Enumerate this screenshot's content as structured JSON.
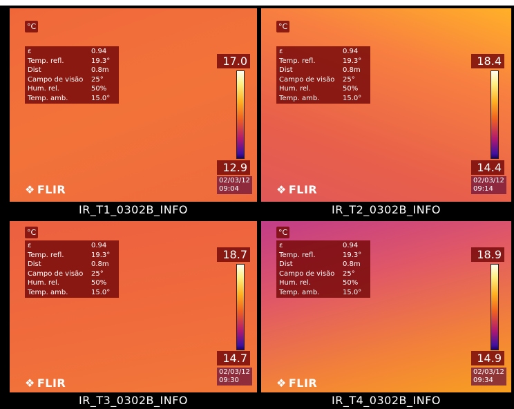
{
  "panels": [
    {
      "unit": "°C",
      "params": [
        {
          "label": "ε",
          "value": "0.94"
        },
        {
          "label": "Temp. refl.",
          "value": "19.3°"
        },
        {
          "label": "Dist",
          "value": "0.8m"
        },
        {
          "label": "Campo de visão",
          "value": "25°"
        },
        {
          "label": "Hum. rel.",
          "value": "50%"
        },
        {
          "label": "Temp. amb.",
          "value": "15.0°"
        }
      ],
      "scale_max": "17.0",
      "scale_min": "12.9",
      "date": "02/03/12",
      "time": "09:04",
      "logo": "FLIR",
      "caption": "IR_T1_0302B_INFO"
    },
    {
      "unit": "°C",
      "params": [
        {
          "label": "ε",
          "value": "0.94"
        },
        {
          "label": "Temp. refl.",
          "value": "19.3°"
        },
        {
          "label": "Dist",
          "value": "0.8m"
        },
        {
          "label": "Campo de visão",
          "value": "25°"
        },
        {
          "label": "Hum. rel.",
          "value": "50%"
        },
        {
          "label": "Temp. amb.",
          "value": "15.0°"
        }
      ],
      "scale_max": "18.4",
      "scale_min": "14.4",
      "date": "02/03/12",
      "time": "09:14",
      "logo": "FLIR",
      "caption": "IR_T2_0302B_INFO"
    },
    {
      "unit": "°C",
      "params": [
        {
          "label": "ε",
          "value": "0.94"
        },
        {
          "label": "Temp. refl.",
          "value": "19.3°"
        },
        {
          "label": "Dist",
          "value": "0.8m"
        },
        {
          "label": "Campo de visão",
          "value": "25°"
        },
        {
          "label": "Hum. rel.",
          "value": "50%"
        },
        {
          "label": "Temp. amb.",
          "value": "15.0°"
        }
      ],
      "scale_max": "18.7",
      "scale_min": "14.7",
      "date": "02/03/12",
      "time": "09:30",
      "logo": "FLIR",
      "caption": "IR_T3_0302B_INFO"
    },
    {
      "unit": "°C",
      "params": [
        {
          "label": "ε",
          "value": "0.94"
        },
        {
          "label": "Temp. refl.",
          "value": "19.3°"
        },
        {
          "label": "Dist",
          "value": "0.8m"
        },
        {
          "label": "Campo de visão",
          "value": "25°"
        },
        {
          "label": "Hum. rel.",
          "value": "50%"
        },
        {
          "label": "Temp. amb.",
          "value": "15.0°"
        }
      ],
      "scale_max": "18.9",
      "scale_min": "14.9",
      "date": "02/03/12",
      "time": "09:34",
      "logo": "FLIR",
      "caption": "IR_T4_0302B_INFO"
    }
  ]
}
